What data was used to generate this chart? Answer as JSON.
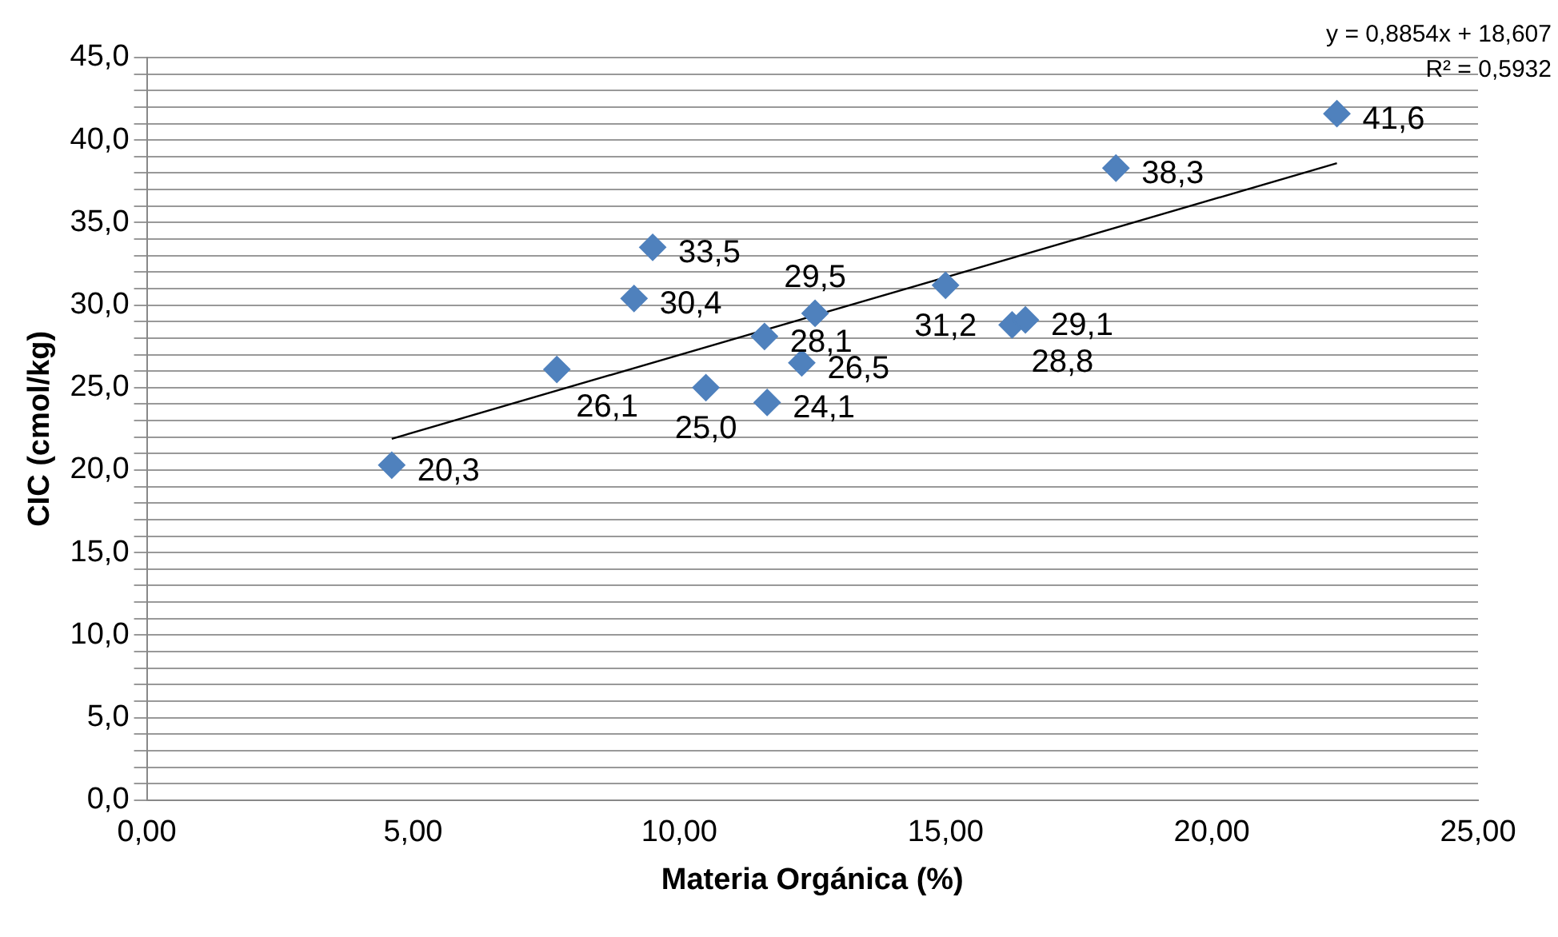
{
  "chart_data": {
    "type": "scatter",
    "xlabel": "Materia Orgánica (%)",
    "ylabel": "CIC (cmol/kg)",
    "series": [
      {
        "color": "#4f81bd",
        "x": [
          4.6,
          7.7,
          9.15,
          9.5,
          10.5,
          11.6,
          11.65,
          12.3,
          12.55,
          15.0,
          16.25,
          16.5,
          18.2,
          22.35
        ],
        "values": [
          20.3,
          26.1,
          30.4,
          33.5,
          25.0,
          28.1,
          24.1,
          26.5,
          29.5,
          31.2,
          28.8,
          29.1,
          38.3,
          41.6
        ],
        "value_labels": [
          "20,3",
          "26,1",
          "30,4",
          "33,5",
          "25,0",
          "28,1",
          "24,1",
          "26,5",
          "29,5",
          "31,2",
          "28,8",
          "29,1",
          "38,3",
          "41,6"
        ]
      },
      {
        "type": "line",
        "color": "#000000",
        "marker": "none",
        "x": [
          4.6,
          22.35
        ],
        "values": [
          21.9,
          38.6
        ]
      }
    ],
    "marker": "diamond",
    "legend": false,
    "grid": "y",
    "xlim": [
      0,
      25
    ],
    "xticks": [
      {
        "value": 0,
        "label": "0,00"
      },
      {
        "value": 5,
        "label": "5,00"
      },
      {
        "value": 10,
        "label": "10,00"
      },
      {
        "value": 15,
        "label": "15,00"
      },
      {
        "value": 20,
        "label": "20,00"
      },
      {
        "value": 25,
        "label": "25,00"
      }
    ],
    "ylim": [
      0,
      45
    ],
    "yticks": [
      {
        "value": 0,
        "label": "0,0"
      },
      {
        "value": 1,
        "label": null
      },
      {
        "value": 2,
        "label": null
      },
      {
        "value": 3,
        "label": null
      },
      {
        "value": 4,
        "label": null
      },
      {
        "value": 5,
        "label": "5,0"
      },
      {
        "value": 6,
        "label": null
      },
      {
        "value": 7,
        "label": null
      },
      {
        "value": 8,
        "label": null
      },
      {
        "value": 9,
        "label": null
      },
      {
        "value": 10,
        "label": "10,0"
      },
      {
        "value": 11,
        "label": null
      },
      {
        "value": 12,
        "label": null
      },
      {
        "value": 13,
        "label": null
      },
      {
        "value": 14,
        "label": null
      },
      {
        "value": 15,
        "label": "15,0"
      },
      {
        "value": 16,
        "label": null
      },
      {
        "value": 17,
        "label": null
      },
      {
        "value": 18,
        "label": null
      },
      {
        "value": 19,
        "label": null
      },
      {
        "value": 20,
        "label": "20,0"
      },
      {
        "value": 21,
        "label": null
      },
      {
        "value": 22,
        "label": null
      },
      {
        "value": 23,
        "label": null
      },
      {
        "value": 24,
        "label": null
      },
      {
        "value": 25,
        "label": "25,0"
      },
      {
        "value": 26,
        "label": null
      },
      {
        "value": 27,
        "label": null
      },
      {
        "value": 28,
        "label": null
      },
      {
        "value": 29,
        "label": null
      },
      {
        "value": 30,
        "label": "30,0"
      },
      {
        "value": 31,
        "label": null
      },
      {
        "value": 32,
        "label": null
      },
      {
        "value": 33,
        "label": null
      },
      {
        "value": 34,
        "label": null
      },
      {
        "value": 35,
        "label": "35,0"
      },
      {
        "value": 36,
        "label": null
      },
      {
        "value": 37,
        "label": null
      },
      {
        "value": 38,
        "label": null
      },
      {
        "value": 39,
        "label": null
      },
      {
        "value": 40,
        "label": "40,0"
      },
      {
        "value": 41,
        "label": null
      },
      {
        "value": 42,
        "label": null
      },
      {
        "value": 43,
        "label": null
      },
      {
        "value": 44,
        "label": null
      },
      {
        "value": 45,
        "label": "45,0"
      }
    ],
    "annotations": [
      "y = 0,8854x + 18,607",
      "R² = 0,5932"
    ]
  }
}
